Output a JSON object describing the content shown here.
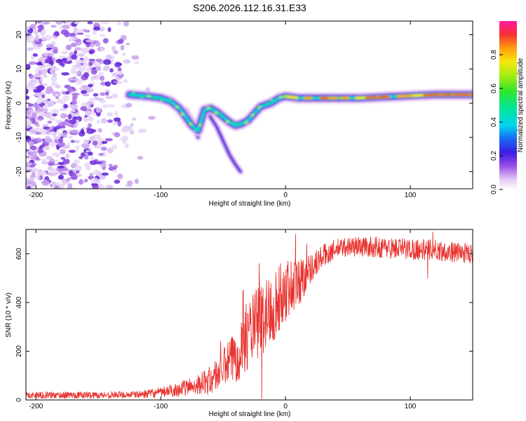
{
  "figure_title": "S206.2026.112.16.31.E33",
  "chart_data": [
    {
      "type": "heatmap",
      "title": "",
      "xlabel": "Height of straight line (km)",
      "ylabel": "Frequency (Hz)",
      "xlim": [
        -208,
        150
      ],
      "ylim": [
        -25,
        24
      ],
      "xticks": [
        -200,
        -100,
        0,
        100
      ],
      "yticks": [
        -20,
        -10,
        0,
        10,
        20
      ],
      "colorbar": {
        "label": "Normalized spectral amplitude",
        "range": [
          0,
          1
        ],
        "ticks": [
          "0.0",
          "0.2",
          "0.4",
          "0.6",
          "0.8"
        ]
      },
      "tracks": [
        {
          "name": "noise-region",
          "x_range": [
            -208,
            -105
          ],
          "y_range": [
            -25,
            24
          ],
          "amplitude": 0.1
        },
        {
          "name": "main-ridge",
          "points": [
            [
              -125,
              2.5
            ],
            [
              -110,
              2
            ],
            [
              -100,
              1.5
            ],
            [
              -92,
              0.5
            ],
            [
              -85,
              -1.5
            ],
            [
              -80,
              -4
            ],
            [
              -75,
              -6.5
            ],
            [
              -70,
              -8
            ],
            [
              -65,
              -2
            ],
            [
              -60,
              -1.5
            ],
            [
              -55,
              -2.5
            ],
            [
              -50,
              -4
            ],
            [
              -45,
              -5.5
            ],
            [
              -40,
              -6.5
            ],
            [
              -35,
              -6
            ],
            [
              -30,
              -5
            ],
            [
              -25,
              -3
            ],
            [
              -20,
              -1
            ],
            [
              -12,
              0
            ],
            [
              -5,
              1.5
            ],
            [
              0,
              2
            ],
            [
              10,
              1.5
            ],
            [
              30,
              1.5
            ],
            [
              60,
              1.5
            ],
            [
              90,
              2
            ],
            [
              120,
              2.5
            ],
            [
              150,
              2.5
            ]
          ],
          "amplitude": 0.75
        },
        {
          "name": "lower-branch",
          "points": [
            [
              -62,
              -3
            ],
            [
              -55,
              -7
            ],
            [
              -50,
              -11
            ],
            [
              -45,
              -15
            ],
            [
              -40,
              -18
            ],
            [
              -36,
              -20
            ]
          ],
          "amplitude": 0.3
        },
        {
          "name": "upper-streak",
          "points": [
            [
              -80,
              -2
            ],
            [
              -75,
              -5
            ],
            [
              -70,
              -10
            ]
          ],
          "amplitude": 0.3
        }
      ]
    },
    {
      "type": "line",
      "title": "",
      "xlabel": "Height of straight line (km)",
      "ylabel": "SNR (10 * v/v)",
      "xlim": [
        -208,
        150
      ],
      "ylim": [
        0,
        700
      ],
      "xticks": [
        -200,
        -100,
        0,
        100
      ],
      "yticks": [
        0,
        200,
        400,
        600
      ],
      "series": [
        {
          "name": "SNR",
          "color": "#e8332f",
          "envelope": [
            [
              -208,
              20
            ],
            [
              -150,
              20
            ],
            [
              -120,
              22
            ],
            [
              -100,
              30
            ],
            [
              -80,
              50
            ],
            [
              -60,
              80
            ],
            [
              -50,
              130
            ],
            [
              -40,
              180
            ],
            [
              -30,
              270
            ],
            [
              -20,
              330
            ],
            [
              -10,
              380
            ],
            [
              0,
              450
            ],
            [
              10,
              480
            ],
            [
              20,
              540
            ],
            [
              30,
              590
            ],
            [
              40,
              620
            ],
            [
              50,
              630
            ],
            [
              60,
              630
            ],
            [
              80,
              625
            ],
            [
              100,
              620
            ],
            [
              120,
              615
            ],
            [
              150,
              600
            ]
          ],
          "noise_amp": [
            [
              -208,
              14
            ],
            [
              -120,
              14
            ],
            [
              -100,
              20
            ],
            [
              -70,
              40
            ],
            [
              -50,
              80
            ],
            [
              -35,
              130
            ],
            [
              -20,
              160
            ],
            [
              -10,
              150
            ],
            [
              0,
              130
            ],
            [
              10,
              110
            ],
            [
              20,
              60
            ],
            [
              40,
              40
            ],
            [
              100,
              45
            ],
            [
              150,
              40
            ]
          ],
          "spikes": [
            [
              -52,
              240
            ],
            [
              -34,
              450
            ],
            [
              -21,
              560
            ],
            [
              -19,
              5
            ],
            [
              2,
              570
            ],
            [
              8,
              680
            ],
            [
              17,
              640
            ],
            [
              114,
              500
            ],
            [
              118,
              690
            ]
          ]
        }
      ]
    }
  ]
}
